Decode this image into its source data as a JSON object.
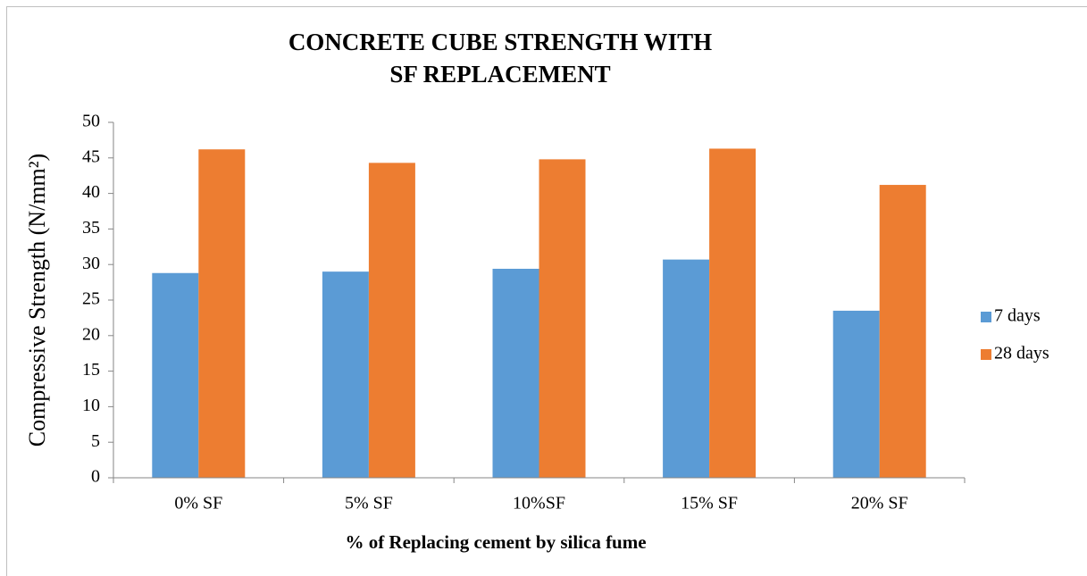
{
  "chart_data": {
    "type": "bar",
    "title": [
      "CONCRETE CUBE STRENGTH WITH",
      "SF REPLACEMENT"
    ],
    "y_label": "Compressive  Strength (N/mm²)",
    "x_label": "%  of  Replacing cement by silica fume",
    "categories": [
      "0% SF",
      "5% SF",
      "10%SF",
      "15% SF",
      "20% SF"
    ],
    "series": [
      {
        "name": "7 days",
        "color": "#5b9bd5",
        "values": [
          28.8,
          29.0,
          29.4,
          30.7,
          23.5
        ]
      },
      {
        "name": "28 days",
        "color": "#ed7d31",
        "values": [
          46.2,
          44.3,
          44.8,
          46.3,
          41.2
        ]
      }
    ],
    "ylim": [
      0,
      50
    ],
    "yticks": [
      0,
      5,
      10,
      15,
      20,
      25,
      30,
      35,
      40,
      45,
      50
    ],
    "grid": false,
    "legend": "right"
  }
}
